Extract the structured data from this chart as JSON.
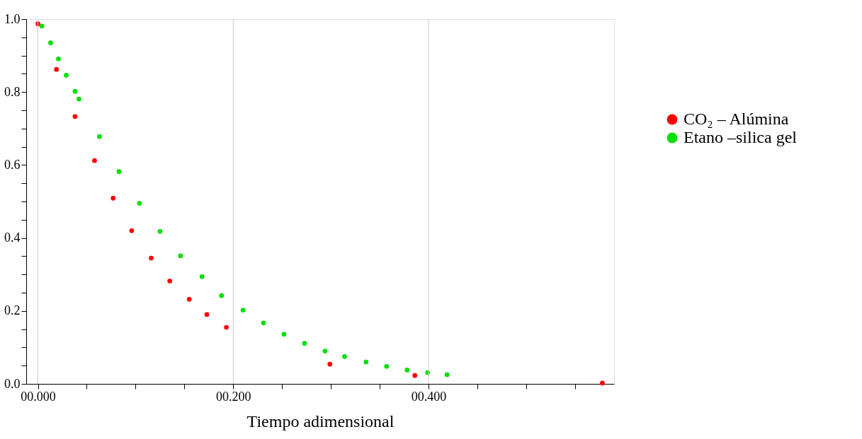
{
  "chart_data": {
    "type": "scatter",
    "xlabel": "Tiempo adimensional",
    "xlim": [
      -0.012,
      0.59
    ],
    "ylim": [
      0,
      1.0
    ],
    "xticks": [
      {
        "value": 0,
        "label": "00.000"
      },
      {
        "value": 0.05,
        "label": null
      },
      {
        "value": 0.1,
        "label": null
      },
      {
        "value": 0.15,
        "label": null
      },
      {
        "value": 0.2,
        "label": "00.200"
      },
      {
        "value": 0.25,
        "label": null
      },
      {
        "value": 0.3,
        "label": null
      },
      {
        "value": 0.35,
        "label": null
      },
      {
        "value": 0.4,
        "label": "00.400"
      },
      {
        "value": 0.45,
        "label": null
      },
      {
        "value": 0.5,
        "label": null
      },
      {
        "value": 0.55,
        "label": null
      }
    ],
    "yticks": [
      {
        "value": 0,
        "label": "0.0"
      },
      {
        "value": 0.05,
        "label": null
      },
      {
        "value": 0.1,
        "label": null
      },
      {
        "value": 0.15,
        "label": null
      },
      {
        "value": 0.2,
        "label": "0.2"
      },
      {
        "value": 0.25,
        "label": null
      },
      {
        "value": 0.3,
        "label": null
      },
      {
        "value": 0.35,
        "label": null
      },
      {
        "value": 0.4,
        "label": "0.4"
      },
      {
        "value": 0.45,
        "label": null
      },
      {
        "value": 0.5,
        "label": null
      },
      {
        "value": 0.55,
        "label": null
      },
      {
        "value": 0.6,
        "label": "0.6"
      },
      {
        "value": 0.65,
        "label": null
      },
      {
        "value": 0.7,
        "label": null
      },
      {
        "value": 0.75,
        "label": null
      },
      {
        "value": 0.8,
        "label": "0.8"
      },
      {
        "value": 0.85,
        "label": null
      },
      {
        "value": 0.9,
        "label": null
      },
      {
        "value": 0.95,
        "label": null
      },
      {
        "value": 1.0,
        "label": "1.0"
      }
    ],
    "grid": "x",
    "legend": "right",
    "marker": "circle",
    "series": [
      {
        "name": "CO₂ – Alúmina",
        "color": "#ff0000",
        "x": [
          0,
          0.019,
          0.038,
          0.058,
          0.077,
          0.096,
          0.116,
          0.135,
          0.155,
          0.173,
          0.193,
          0.299,
          0.386,
          0.578
        ],
        "values": [
          0.987,
          0.862,
          0.733,
          0.612,
          0.509,
          0.42,
          0.345,
          0.282,
          0.232,
          0.19,
          0.155,
          0.054,
          0.023,
          0.002
        ]
      },
      {
        "name": "Etano –silica gel",
        "color": "#00e000",
        "x": [
          0.004,
          0.013,
          0.021,
          0.029,
          0.038,
          0.042,
          0.063,
          0.083,
          0.104,
          0.125,
          0.146,
          0.168,
          0.188,
          0.21,
          0.231,
          0.252,
          0.273,
          0.294,
          0.314,
          0.336,
          0.357,
          0.378,
          0.399,
          0.419
        ],
        "values": [
          0.981,
          0.935,
          0.891,
          0.846,
          0.802,
          0.781,
          0.678,
          0.582,
          0.495,
          0.418,
          0.351,
          0.294,
          0.242,
          0.202,
          0.167,
          0.136,
          0.111,
          0.09,
          0.075,
          0.06,
          0.048,
          0.038,
          0.031,
          0.025
        ]
      }
    ]
  }
}
